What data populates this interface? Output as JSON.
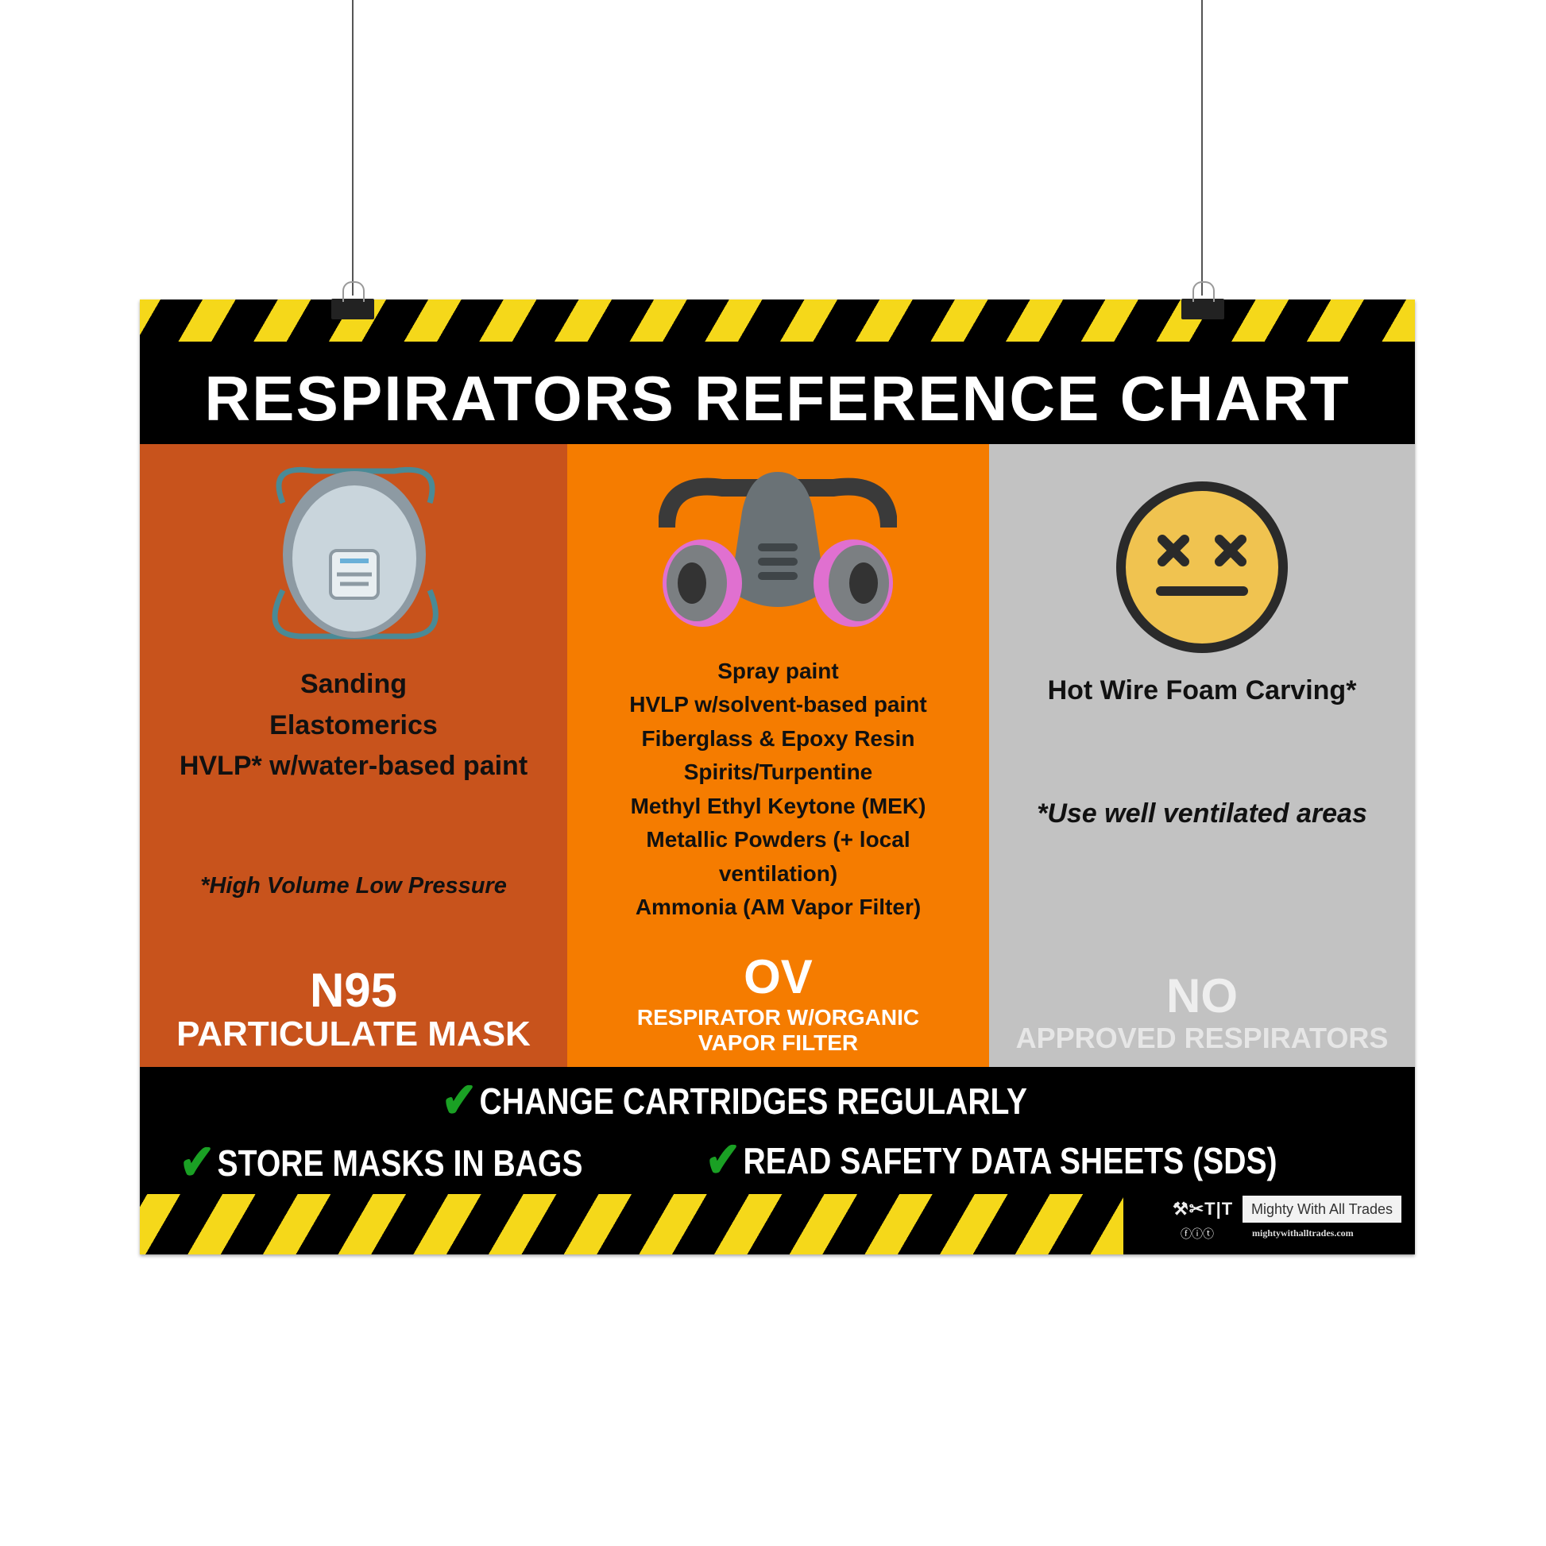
{
  "title": "RESPIRATORS REFERENCE CHART",
  "colors": {
    "col1": "#c8531c",
    "col2": "#f57c00",
    "col3": "#c2c2c2",
    "stripe_yellow": "#f5d81a",
    "check_green": "#1aa024"
  },
  "columns": [
    {
      "icon": "n95-mask-icon",
      "uses": [
        "Sanding",
        "Elastomerics",
        "HVLP* w/water-based paint"
      ],
      "note": "*High Volume Low Pressure",
      "heading": "N95",
      "subheading": "PARTICULATE MASK"
    },
    {
      "icon": "half-face-respirator-icon",
      "uses": [
        "Spray paint",
        "HVLP w/solvent-based paint",
        "Fiberglass & Epoxy Resin",
        "Spirits/Turpentine",
        "Methyl Ethyl Keytone (MEK)",
        "Metallic Powders (+ local",
        "ventilation)",
        "Ammonia (AM Vapor Filter)"
      ],
      "heading": "OV",
      "subheading_lines": [
        "RESPIRATOR W/ORGANIC",
        "VAPOR FILTER"
      ]
    },
    {
      "icon": "dizzy-face-icon",
      "uses": [
        "Hot Wire Foam Carving*"
      ],
      "note": "*Use well ventilated areas",
      "heading": "NO",
      "subheading": "APPROVED RESPIRATORS"
    }
  ],
  "tips": [
    "CHANGE CARTRIDGES REGULARLY",
    "STORE MASKS IN BAGS",
    "READ SAFETY DATA SHEETS (SDS)"
  ],
  "logo": {
    "name": "Mighty With All Trades",
    "url": "mightywithalltrades.com"
  }
}
